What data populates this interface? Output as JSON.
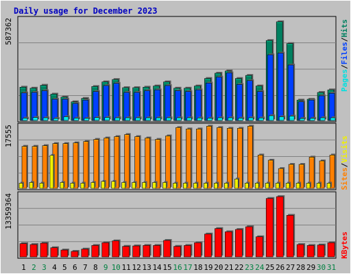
{
  "title": "Daily usage for December 2023",
  "colors": {
    "background": "#c0c0c0",
    "panel": "#c0c0c0",
    "title": "#0000c0",
    "hits": "#008060",
    "files": "#0040ff",
    "pages": "#00e0e0",
    "visits": "#f0f000",
    "sites": "#ff8000",
    "kbytes": "#ff0000",
    "weekday": "#000000",
    "weekend": "#008040"
  },
  "legends": {
    "top": [
      "Pages",
      "/",
      "Files",
      "/",
      "Hits"
    ],
    "middle": [
      "Sites",
      "/",
      "Visits"
    ],
    "bottom": [
      "KBytes"
    ]
  },
  "chart_data": {
    "type": "bar",
    "x": [
      "1",
      "2",
      "3",
      "4",
      "5",
      "6",
      "7",
      "8",
      "9",
      "10",
      "11",
      "12",
      "13",
      "14",
      "15",
      "16",
      "17",
      "18",
      "19",
      "20",
      "21",
      "22",
      "23",
      "24",
      "25",
      "26",
      "27",
      "28",
      "29",
      "30",
      "31"
    ],
    "weekend_days": [
      "2",
      "3",
      "9",
      "10",
      "16",
      "17",
      "23",
      "24",
      "30",
      "31"
    ],
    "panels": [
      {
        "name": "hits-files-pages",
        "ymax_label": "587362",
        "ymax": 587362,
        "series": [
          {
            "name": "Hits",
            "values": [
              196000,
              190000,
              207000,
              155000,
              138000,
              110000,
              130000,
              200000,
              227000,
              241000,
              193000,
              193000,
              196000,
              203000,
              227000,
              190000,
              190000,
              203000,
              247000,
              278000,
              291000,
              247000,
              265000,
              203000,
              470000,
              580000,
              452000,
              120000,
              125000,
              165000,
              180000
            ]
          },
          {
            "name": "Files",
            "values": [
              162000,
              165000,
              175000,
              125000,
              125000,
              100000,
              120000,
              170000,
              205000,
              218000,
              165000,
              165000,
              175000,
              180000,
              205000,
              175000,
              170000,
              180000,
              220000,
              255000,
              280000,
              212000,
              234000,
              170000,
              386000,
              396000,
              326000,
              110000,
              120000,
              145000,
              160000
            ]
          },
          {
            "name": "Pages",
            "values": [
              14000,
              18000,
              16000,
              12000,
              22000,
              14000,
              13000,
              17000,
              18000,
              16000,
              16000,
              16000,
              16000,
              16000,
              16000,
              16000,
              16000,
              15000,
              14000,
              16000,
              16000,
              14000,
              16000,
              15000,
              28000,
              22000,
              26000,
              12000,
              13000,
              16000,
              16000
            ]
          }
        ]
      },
      {
        "name": "sites-visits",
        "ymax_label": "17555",
        "ymax": 17555,
        "series": [
          {
            "name": "Sites",
            "values": [
              12100,
              12100,
              12300,
              12900,
              12900,
              13100,
              13500,
              14100,
              14500,
              14900,
              15500,
              14900,
              14500,
              14100,
              15100,
              17500,
              17100,
              17100,
              17900,
              17500,
              17300,
              17300,
              17900,
              9600,
              8100,
              5700,
              6900,
              6900,
              9000,
              7900,
              9600
            ]
          },
          {
            "name": "Visits",
            "values": [
              1500,
              1700,
              1500,
              9500,
              1700,
              1500,
              1500,
              1700,
              2000,
              2000,
              1700,
              1700,
              1700,
              1700,
              1700,
              1500,
              1500,
              1500,
              1500,
              1500,
              1500,
              2700,
              1500,
              1500,
              1500,
              1500,
              1500,
              1500,
              1500,
              1500,
              1500
            ]
          }
        ]
      },
      {
        "name": "kbytes",
        "ymax_label": "13359364",
        "ymax": 13359364,
        "series": [
          {
            "name": "KBytes",
            "values": [
              2900000,
              2700000,
              3000000,
              2000000,
              1500000,
              1200000,
              1700000,
              2500000,
              3100000,
              3500000,
              2300000,
              2400000,
              2500000,
              2500000,
              3600000,
              2300000,
              2500000,
              3100000,
              5000000,
              6200000,
              5500000,
              6000000,
              6600000,
              4400000,
              12800000,
              13200000,
              9100000,
              2700000,
              2500000,
              2600000,
              3100000
            ]
          }
        ]
      }
    ]
  }
}
